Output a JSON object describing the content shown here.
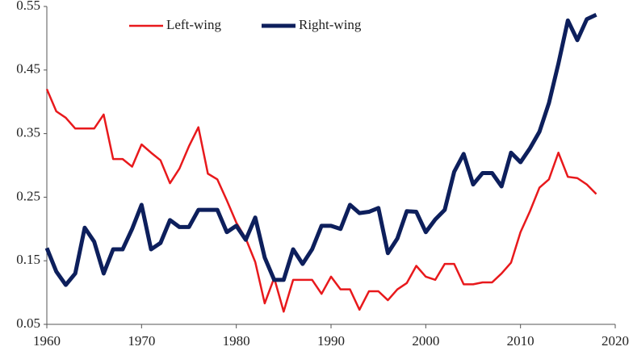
{
  "chart_data": {
    "type": "line",
    "x": [
      1960,
      1961,
      1962,
      1963,
      1964,
      1965,
      1966,
      1967,
      1968,
      1969,
      1970,
      1971,
      1972,
      1973,
      1974,
      1975,
      1976,
      1977,
      1978,
      1979,
      1980,
      1981,
      1982,
      1983,
      1984,
      1985,
      1986,
      1987,
      1988,
      1989,
      1990,
      1991,
      1992,
      1993,
      1994,
      1995,
      1996,
      1997,
      1998,
      1999,
      2000,
      2001,
      2002,
      2003,
      2004,
      2005,
      2006,
      2007,
      2008,
      2009,
      2010,
      2011,
      2012,
      2013,
      2014,
      2015,
      2016,
      2017,
      2018
    ],
    "series": [
      {
        "name": "Left-wing",
        "color": "#e8191c",
        "width": 2.5,
        "values": [
          0.42,
          0.385,
          0.375,
          0.358,
          0.358,
          0.358,
          0.38,
          0.31,
          0.31,
          0.298,
          0.333,
          0.32,
          0.308,
          0.272,
          0.295,
          0.33,
          0.36,
          0.287,
          0.278,
          0.245,
          0.21,
          0.185,
          0.148,
          0.083,
          0.123,
          0.07,
          0.12,
          0.12,
          0.12,
          0.098,
          0.125,
          0.105,
          0.105,
          0.073,
          0.102,
          0.102,
          0.088,
          0.105,
          0.115,
          0.142,
          0.125,
          0.12,
          0.145,
          0.145,
          0.113,
          0.113,
          0.116,
          0.116,
          0.13,
          0.147,
          0.195,
          0.228,
          0.265,
          0.278,
          0.32,
          0.282,
          0.28,
          0.27,
          0.255
        ]
      },
      {
        "name": "Right-wing",
        "color": "#0d1f5c",
        "width": 5,
        "values": [
          0.17,
          0.133,
          0.112,
          0.13,
          0.202,
          0.18,
          0.13,
          0.168,
          0.168,
          0.2,
          0.238,
          0.168,
          0.178,
          0.214,
          0.203,
          0.203,
          0.23,
          0.23,
          0.23,
          0.195,
          0.205,
          0.183,
          0.218,
          0.155,
          0.12,
          0.12,
          0.168,
          0.145,
          0.168,
          0.205,
          0.205,
          0.2,
          0.238,
          0.225,
          0.227,
          0.233,
          0.162,
          0.185,
          0.228,
          0.227,
          0.195,
          0.215,
          0.23,
          0.29,
          0.318,
          0.27,
          0.288,
          0.288,
          0.267,
          0.32,
          0.305,
          0.327,
          0.353,
          0.398,
          0.46,
          0.528,
          0.497,
          0.53,
          0.537
        ]
      }
    ],
    "xlim": [
      1960,
      2020
    ],
    "xticks": [
      1960,
      1970,
      1980,
      1990,
      2000,
      2010,
      2020
    ],
    "ylim": [
      0.05,
      0.55
    ],
    "yticks": [
      0.05,
      0.15,
      0.25,
      0.35,
      0.45,
      0.55
    ],
    "grid": false,
    "legend": "upper center"
  }
}
